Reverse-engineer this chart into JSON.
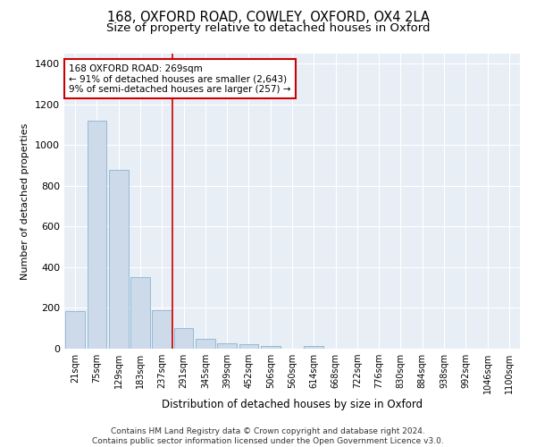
{
  "title1": "168, OXFORD ROAD, COWLEY, OXFORD, OX4 2LA",
  "title2": "Size of property relative to detached houses in Oxford",
  "xlabel": "Distribution of detached houses by size in Oxford",
  "ylabel": "Number of detached properties",
  "categories": [
    "21sqm",
    "75sqm",
    "129sqm",
    "183sqm",
    "237sqm",
    "291sqm",
    "345sqm",
    "399sqm",
    "452sqm",
    "506sqm",
    "560sqm",
    "614sqm",
    "668sqm",
    "722sqm",
    "776sqm",
    "830sqm",
    "884sqm",
    "938sqm",
    "992sqm",
    "1046sqm",
    "1100sqm"
  ],
  "values": [
    185,
    1120,
    880,
    350,
    190,
    100,
    50,
    25,
    20,
    15,
    0,
    15,
    0,
    0,
    0,
    0,
    0,
    0,
    0,
    0,
    0
  ],
  "bar_color": "#ccdaea",
  "bar_edge_color": "#7aaaca",
  "vline_x": 4.5,
  "vline_color": "#cc0000",
  "annotation_text": "168 OXFORD ROAD: 269sqm\n← 91% of detached houses are smaller (2,643)\n9% of semi-detached houses are larger (257) →",
  "annotation_box_color": "#ffffff",
  "annotation_box_edge_color": "#cc0000",
  "ylim": [
    0,
    1450
  ],
  "yticks": [
    0,
    200,
    400,
    600,
    800,
    1000,
    1200,
    1400
  ],
  "footer": "Contains HM Land Registry data © Crown copyright and database right 2024.\nContains public sector information licensed under the Open Government Licence v3.0.",
  "bg_color": "#e8eef6",
  "title1_fontsize": 10.5,
  "title2_fontsize": 9.5,
  "annotation_fontsize": 7.5,
  "footer_fontsize": 6.5,
  "ylabel_fontsize": 8,
  "xlabel_fontsize": 8.5,
  "ytick_fontsize": 8,
  "xtick_fontsize": 7
}
